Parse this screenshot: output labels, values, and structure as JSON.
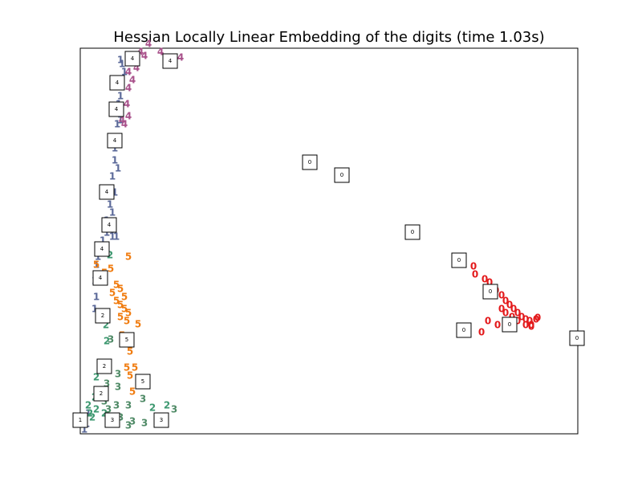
{
  "chart_data": {
    "type": "scatter",
    "title": "Hessian Locally Linear Embedding of the digits (time 1.03s)",
    "xlim": [
      0,
      620
    ],
    "ylim": [
      0,
      480
    ],
    "series": [
      {
        "name": "0",
        "color": "#e31a1c",
        "x": [
          490,
          492,
          504,
          510,
          518,
          525,
          530,
          535,
          540,
          545,
          550,
          555,
          560,
          568,
          562,
          555,
          545,
          538,
          530,
          525,
          508,
          500,
          520,
          562,
          570
        ],
        "y": [
          208,
          198,
          192,
          188,
          178,
          172,
          165,
          160,
          155,
          150,
          145,
          142,
          140,
          142,
          135,
          135,
          140,
          145,
          150,
          155,
          140,
          126,
          135,
          133,
          144
        ]
      },
      {
        "name": "1",
        "color": "#5a6898",
        "x": [
          50,
          52,
          55,
          50,
          48,
          50,
          46,
          40,
          43,
          43,
          47,
          40,
          43,
          37,
          40,
          33,
          37,
          33,
          40,
          45,
          28,
          22,
          20,
          18,
          20,
          18,
          22,
          10,
          5,
          8
        ],
        "y": [
          465,
          460,
          450,
          420,
          410,
          390,
          385,
          365,
          355,
          340,
          330,
          320,
          300,
          285,
          275,
          265,
          260,
          250,
          245,
          245,
          240,
          220,
          210,
          190,
          170,
          155,
          147,
          25,
          5,
          12
        ]
      },
      {
        "name": "2",
        "color": "#3d9870",
        "x": [
          37,
          32,
          33,
          20,
          18,
          10,
          12,
          15,
          20,
          90,
          108,
          30,
          40
        ],
        "y": [
          222,
          135,
          115,
          70,
          45,
          35,
          25,
          20,
          30,
          32,
          35,
          25,
          15
        ]
      },
      {
        "name": "3",
        "color": "#4f8a66",
        "x": [
          38,
          47,
          33,
          47,
          25,
          30,
          78,
          60,
          50,
          65,
          80,
          60,
          117,
          35,
          45
        ],
        "y": [
          117,
          74,
          62,
          58,
          50,
          40,
          43,
          35,
          20,
          15,
          13,
          10,
          30,
          30,
          35
        ]
      },
      {
        "name": "4",
        "color": "#a8508a",
        "x": [
          85,
          75,
          65,
          60,
          65,
          60,
          58,
          60,
          55,
          100,
          110,
          125,
          80,
          70,
          52
        ],
        "y": [
          485,
          475,
          465,
          450,
          440,
          430,
          410,
          395,
          385,
          475,
          468,
          468,
          470,
          455,
          390
        ]
      },
      {
        "name": "5",
        "color": "#f07c10",
        "x": [
          60,
          20,
          38,
          45,
          50,
          40,
          45,
          50,
          55,
          60,
          50,
          58,
          72,
          62,
          58,
          68,
          62,
          65,
          52,
          55,
          30,
          25
        ],
        "y": [
          220,
          210,
          205,
          185,
          180,
          175,
          165,
          160,
          155,
          150,
          145,
          140,
          136,
          102,
          82,
          82,
          72,
          52,
          122,
          170,
          200,
          192
        ]
      }
    ],
    "thumbnails": [
      {
        "x": 65,
        "y": 467,
        "label": "4"
      },
      {
        "x": 112,
        "y": 464,
        "label": "4"
      },
      {
        "x": 46,
        "y": 437,
        "label": "4"
      },
      {
        "x": 45,
        "y": 404,
        "label": "4"
      },
      {
        "x": 43,
        "y": 365,
        "label": "4"
      },
      {
        "x": 33,
        "y": 301,
        "label": "4"
      },
      {
        "x": 36,
        "y": 260,
        "label": "4"
      },
      {
        "x": 27,
        "y": 230,
        "label": "4"
      },
      {
        "x": 25,
        "y": 194,
        "label": "4"
      },
      {
        "x": 28,
        "y": 147,
        "label": "2"
      },
      {
        "x": 58,
        "y": 117,
        "label": "5"
      },
      {
        "x": 30,
        "y": 84,
        "label": "2"
      },
      {
        "x": 78,
        "y": 65,
        "label": "5"
      },
      {
        "x": 26,
        "y": 50,
        "label": "2"
      },
      {
        "x": 0,
        "y": 17,
        "label": "1"
      },
      {
        "x": 40,
        "y": 17,
        "label": "3"
      },
      {
        "x": 101,
        "y": 17,
        "label": "3"
      },
      {
        "x": 286,
        "y": 338,
        "label": "0"
      },
      {
        "x": 326,
        "y": 322,
        "label": "0"
      },
      {
        "x": 414,
        "y": 251,
        "label": "0"
      },
      {
        "x": 472,
        "y": 216,
        "label": "0"
      },
      {
        "x": 511,
        "y": 177,
        "label": "0"
      },
      {
        "x": 535,
        "y": 136,
        "label": "0"
      },
      {
        "x": 478,
        "y": 129,
        "label": "0"
      },
      {
        "x": 619,
        "y": 119,
        "label": "0"
      }
    ]
  }
}
